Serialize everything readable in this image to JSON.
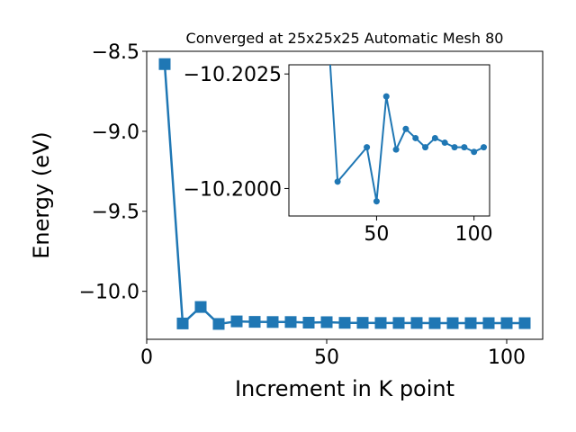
{
  "chart_data": [
    {
      "type": "line",
      "title": "Converged at 25x25x25 Automatic Mesh 80",
      "xlabel": "Increment in K point",
      "ylabel": "Energy (eV)",
      "xlim": [
        0,
        110
      ],
      "ylim": [
        -10.3,
        -8.5
      ],
      "xticks": [
        0,
        50,
        100
      ],
      "yticks": [
        -10.0,
        -9.5,
        -9.0,
        -8.5
      ],
      "xtick_labels": [
        "0",
        "50",
        "100"
      ],
      "ytick_labels": [
        "−10.0",
        "−9.5",
        "−9.0",
        "−8.5"
      ],
      "grid": false,
      "marker": "square",
      "color": "#1f77b4",
      "series": [
        {
          "x": [
            5,
            10,
            15,
            20,
            25,
            30,
            35,
            40,
            45,
            50,
            55,
            60,
            65,
            70,
            75,
            80,
            85,
            90,
            95,
            100,
            105
          ],
          "y": [
            -8.58,
            -10.201,
            -10.098,
            -10.204,
            -10.188,
            -10.191,
            -10.192,
            -10.192,
            -10.196,
            -10.193,
            -10.197,
            -10.197,
            -10.198,
            -10.198,
            -10.198,
            -10.199,
            -10.199,
            -10.199,
            -10.199,
            -10.199,
            -10.199
          ]
        }
      ]
    },
    {
      "type": "line",
      "title": "",
      "xlabel": "",
      "ylabel": "",
      "xlim": [
        5,
        108
      ],
      "ylim": [
        -10.1994,
        -10.2027
      ],
      "xticks": [
        50,
        100
      ],
      "yticks": [
        -10.2025,
        -10.2
      ],
      "xtick_labels": [
        "50",
        "100"
      ],
      "ytick_labels": [
        "−10.2025",
        "−10.2000"
      ],
      "marker": "circle",
      "color": "#1f77b4",
      "series": [
        {
          "x": [
            25,
            30,
            45,
            50,
            55,
            60,
            65,
            70,
            75,
            80,
            85,
            90,
            95,
            100,
            105
          ],
          "y": [
            -10.2035,
            -10.20015,
            -10.2009,
            -10.19972,
            -10.20201,
            -10.20085,
            -10.2013,
            -10.2011,
            -10.2009,
            -10.2011,
            -10.201,
            -10.2009,
            -10.2009,
            -10.2008,
            -10.2009
          ]
        }
      ]
    }
  ]
}
